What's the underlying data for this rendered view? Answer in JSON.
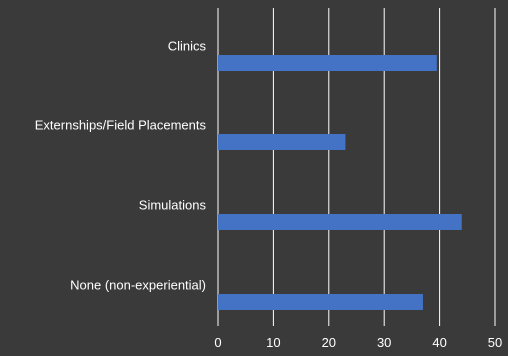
{
  "chart_data": {
    "type": "bar",
    "orientation": "horizontal",
    "categories": [
      "Clinics",
      "Externships/Field Placements",
      "Simulations",
      "None (non-experiential)"
    ],
    "values": [
      39.5,
      23,
      44,
      37
    ],
    "xlim": [
      0,
      50
    ],
    "xticks": [
      "0",
      "10",
      "20",
      "30",
      "40",
      "50"
    ],
    "grid": true,
    "legend": "none",
    "title": "",
    "xlabel": "",
    "ylabel": ""
  },
  "colors": {
    "background": "#3a3a3a",
    "bar": "#4472c4",
    "grid": "#ffffff",
    "text": "#ffffff"
  }
}
